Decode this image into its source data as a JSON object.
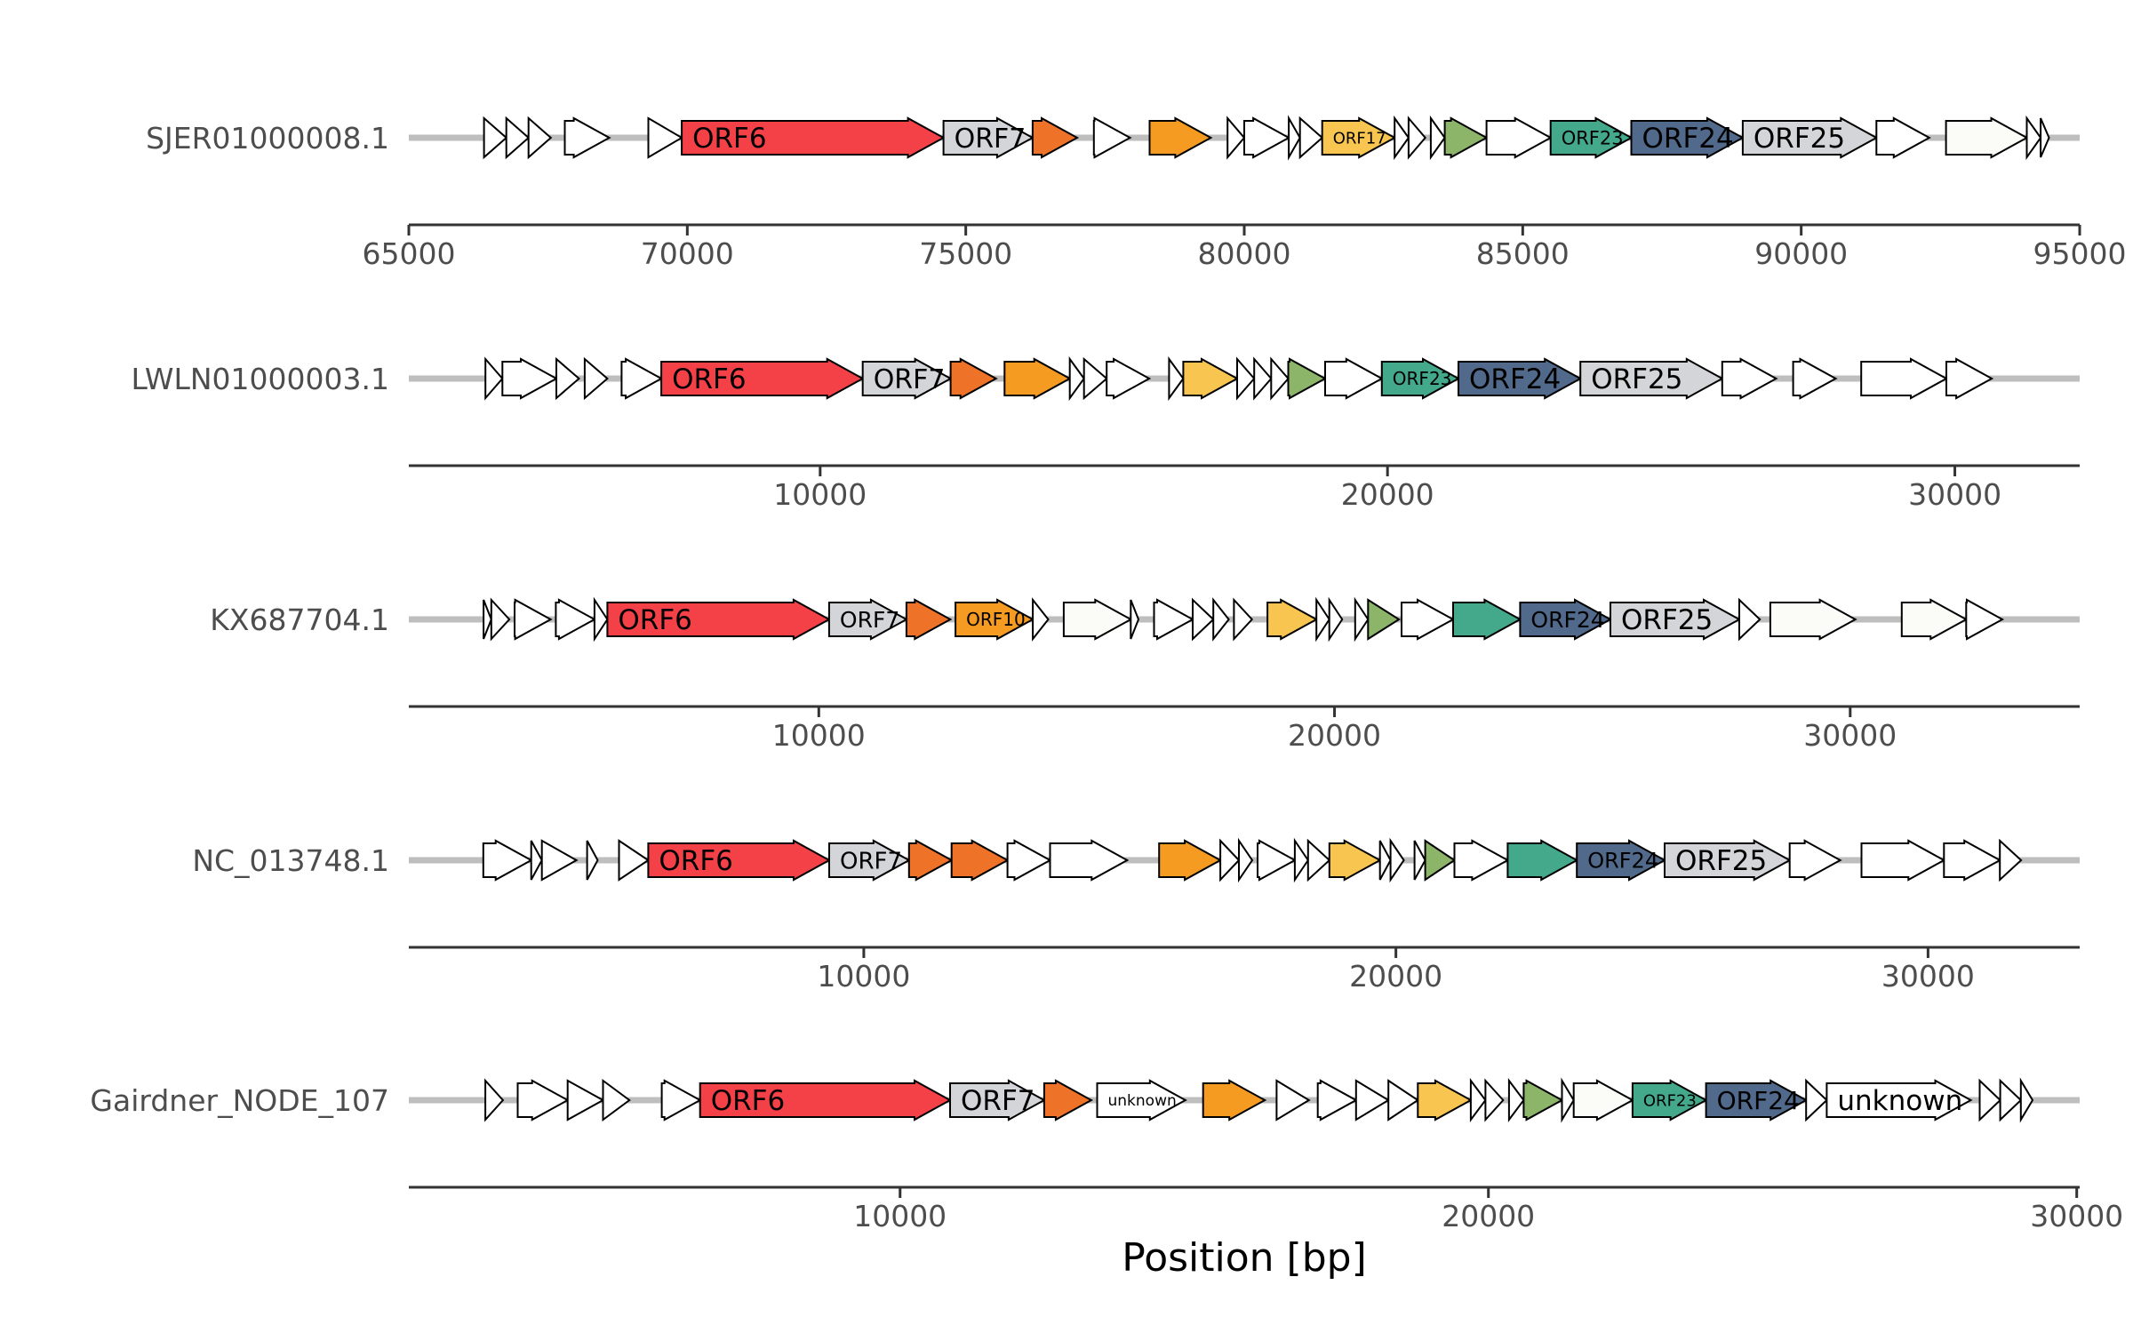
{
  "figure": {
    "x_axis_title": "Position [bp]",
    "backbone_color": "#bebebe",
    "axis_color": "#333333",
    "gene_outline": "#000000"
  },
  "palette": {
    "red": "#f44147",
    "lightgray": "#d3d5d8",
    "orange": "#ef7229",
    "amber": "#f69b22",
    "yellow": "#f8c650",
    "green": "#8cb569",
    "teal": "#44a98b",
    "slate": "#51698a",
    "white": "#ffffff",
    "offwhite": "#fbfcf8"
  },
  "tracks": [
    {
      "name": "SJER01000008.1",
      "xlim": [
        65000,
        95000
      ],
      "ticks": [
        65000,
        70000,
        75000,
        80000,
        85000,
        90000,
        95000
      ],
      "genes": [
        {
          "start": 66350,
          "end": 66750,
          "fill": "white",
          "label": ""
        },
        {
          "start": 66750,
          "end": 67150,
          "fill": "white",
          "label": ""
        },
        {
          "start": 67150,
          "end": 67550,
          "fill": "white",
          "label": ""
        },
        {
          "start": 67800,
          "end": 68600,
          "fill": "white",
          "label": ""
        },
        {
          "start": 69300,
          "end": 69900,
          "fill": "white",
          "label": ""
        },
        {
          "start": 69900,
          "end": 74600,
          "fill": "red",
          "label": "ORF6"
        },
        {
          "start": 74600,
          "end": 76200,
          "fill": "lightgray",
          "label": "ORF7"
        },
        {
          "start": 76200,
          "end": 77000,
          "fill": "orange",
          "label": ""
        },
        {
          "start": 77300,
          "end": 77950,
          "fill": "white",
          "label": ""
        },
        {
          "start": 78300,
          "end": 79400,
          "fill": "amber",
          "label": ""
        },
        {
          "start": 79700,
          "end": 80000,
          "fill": "white",
          "label": ""
        },
        {
          "start": 80000,
          "end": 80800,
          "fill": "white",
          "label": ""
        },
        {
          "start": 80800,
          "end": 81000,
          "fill": "white",
          "label": ""
        },
        {
          "start": 81000,
          "end": 81400,
          "fill": "white",
          "label": ""
        },
        {
          "start": 81400,
          "end": 82700,
          "fill": "yellow",
          "label": "ORF17"
        },
        {
          "start": 82700,
          "end": 82950,
          "fill": "white",
          "label": ""
        },
        {
          "start": 82950,
          "end": 83250,
          "fill": "white",
          "label": ""
        },
        {
          "start": 83350,
          "end": 83600,
          "fill": "white",
          "label": ""
        },
        {
          "start": 83600,
          "end": 84350,
          "fill": "green",
          "label": ""
        },
        {
          "start": 84350,
          "end": 85500,
          "fill": "white",
          "label": ""
        },
        {
          "start": 85500,
          "end": 86950,
          "fill": "teal",
          "label": "ORF23"
        },
        {
          "start": 86950,
          "end": 88950,
          "fill": "slate",
          "label": "ORF24"
        },
        {
          "start": 88950,
          "end": 91350,
          "fill": "lightgray",
          "label": "ORF25"
        },
        {
          "start": 91350,
          "end": 92300,
          "fill": "white",
          "label": ""
        },
        {
          "start": 92600,
          "end": 94050,
          "fill": "offwhite",
          "label": ""
        },
        {
          "start": 94050,
          "end": 94300,
          "fill": "white",
          "label": ""
        },
        {
          "start": 94300,
          "end": 94450,
          "fill": "white",
          "label": ""
        }
      ]
    },
    {
      "name": "LWLN01000003.1",
      "xlim": [
        2750,
        32200
      ],
      "ticks": [
        10000,
        20000,
        30000
      ],
      "genes": [
        {
          "start": 4100,
          "end": 4400,
          "fill": "white",
          "label": ""
        },
        {
          "start": 4400,
          "end": 5350,
          "fill": "white",
          "label": ""
        },
        {
          "start": 5350,
          "end": 5750,
          "fill": "white",
          "label": ""
        },
        {
          "start": 5850,
          "end": 6250,
          "fill": "white",
          "label": ""
        },
        {
          "start": 6500,
          "end": 7200,
          "fill": "white",
          "label": ""
        },
        {
          "start": 7200,
          "end": 10750,
          "fill": "red",
          "label": "ORF6"
        },
        {
          "start": 10750,
          "end": 12300,
          "fill": "lightgray",
          "label": "ORF7"
        },
        {
          "start": 12300,
          "end": 13100,
          "fill": "orange",
          "label": ""
        },
        {
          "start": 13250,
          "end": 14400,
          "fill": "amber",
          "label": ""
        },
        {
          "start": 14400,
          "end": 14650,
          "fill": "white",
          "label": ""
        },
        {
          "start": 14650,
          "end": 15050,
          "fill": "white",
          "label": ""
        },
        {
          "start": 15050,
          "end": 15800,
          "fill": "white",
          "label": ""
        },
        {
          "start": 16150,
          "end": 16400,
          "fill": "white",
          "label": ""
        },
        {
          "start": 16400,
          "end": 17350,
          "fill": "yellow",
          "label": ""
        },
        {
          "start": 17350,
          "end": 17650,
          "fill": "white",
          "label": ""
        },
        {
          "start": 17650,
          "end": 17950,
          "fill": "white",
          "label": ""
        },
        {
          "start": 17950,
          "end": 18250,
          "fill": "white",
          "label": ""
        },
        {
          "start": 18250,
          "end": 18900,
          "fill": "green",
          "label": ""
        },
        {
          "start": 18900,
          "end": 19900,
          "fill": "white",
          "label": ""
        },
        {
          "start": 19900,
          "end": 21250,
          "fill": "teal",
          "label": "ORF23"
        },
        {
          "start": 21250,
          "end": 23400,
          "fill": "slate",
          "label": "ORF24"
        },
        {
          "start": 23400,
          "end": 25900,
          "fill": "lightgray",
          "label": "ORF25"
        },
        {
          "start": 25900,
          "end": 26850,
          "fill": "white",
          "label": ""
        },
        {
          "start": 27150,
          "end": 27900,
          "fill": "white",
          "label": ""
        },
        {
          "start": 28350,
          "end": 29850,
          "fill": "white",
          "label": ""
        },
        {
          "start": 29850,
          "end": 30650,
          "fill": "white",
          "label": ""
        }
      ]
    },
    {
      "name": "KX687704.1",
      "xlim": [
        2050,
        34450
      ],
      "ticks": [
        10000,
        20000,
        30000
      ],
      "genes": [
        {
          "start": 3500,
          "end": 3650,
          "fill": "white",
          "label": ""
        },
        {
          "start": 3650,
          "end": 4000,
          "fill": "white",
          "label": ""
        },
        {
          "start": 4100,
          "end": 4800,
          "fill": "white",
          "label": ""
        },
        {
          "start": 4900,
          "end": 5650,
          "fill": "white",
          "label": ""
        },
        {
          "start": 5650,
          "end": 5900,
          "fill": "white",
          "label": ""
        },
        {
          "start": 5900,
          "end": 10200,
          "fill": "red",
          "label": "ORF6"
        },
        {
          "start": 10200,
          "end": 11700,
          "fill": "lightgray",
          "label": "ORF7"
        },
        {
          "start": 11700,
          "end": 12550,
          "fill": "orange",
          "label": ""
        },
        {
          "start": 12650,
          "end": 14150,
          "fill": "amber",
          "label": "ORF10"
        },
        {
          "start": 14150,
          "end": 14450,
          "fill": "white",
          "label": ""
        },
        {
          "start": 14750,
          "end": 16050,
          "fill": "offwhite",
          "label": ""
        },
        {
          "start": 16050,
          "end": 16200,
          "fill": "white",
          "label": ""
        },
        {
          "start": 16500,
          "end": 17250,
          "fill": "white",
          "label": ""
        },
        {
          "start": 17250,
          "end": 17650,
          "fill": "white",
          "label": ""
        },
        {
          "start": 17650,
          "end": 17950,
          "fill": "white",
          "label": ""
        },
        {
          "start": 18050,
          "end": 18400,
          "fill": "white",
          "label": ""
        },
        {
          "start": 18700,
          "end": 19650,
          "fill": "yellow",
          "label": ""
        },
        {
          "start": 19650,
          "end": 19900,
          "fill": "white",
          "label": ""
        },
        {
          "start": 19900,
          "end": 20150,
          "fill": "white",
          "label": ""
        },
        {
          "start": 20400,
          "end": 20650,
          "fill": "white",
          "label": ""
        },
        {
          "start": 20650,
          "end": 21250,
          "fill": "green",
          "label": ""
        },
        {
          "start": 21300,
          "end": 22300,
          "fill": "white",
          "label": ""
        },
        {
          "start": 22300,
          "end": 23600,
          "fill": "teal",
          "label": ""
        },
        {
          "start": 23600,
          "end": 25350,
          "fill": "slate",
          "label": "ORF24"
        },
        {
          "start": 25350,
          "end": 27850,
          "fill": "lightgray",
          "label": "ORF25"
        },
        {
          "start": 27850,
          "end": 28250,
          "fill": "white",
          "label": ""
        },
        {
          "start": 28450,
          "end": 30100,
          "fill": "offwhite",
          "label": ""
        },
        {
          "start": 31000,
          "end": 32250,
          "fill": "offwhite",
          "label": ""
        },
        {
          "start": 32250,
          "end": 32950,
          "fill": "white",
          "label": ""
        }
      ]
    },
    {
      "name": "NC_013748.1",
      "xlim": [
        1450,
        32850
      ],
      "ticks": [
        10000,
        20000,
        30000
      ],
      "genes": [
        {
          "start": 2850,
          "end": 3750,
          "fill": "white",
          "label": ""
        },
        {
          "start": 3750,
          "end": 3950,
          "fill": "white",
          "label": ""
        },
        {
          "start": 3950,
          "end": 4600,
          "fill": "white",
          "label": ""
        },
        {
          "start": 4800,
          "end": 5000,
          "fill": "white",
          "label": ""
        },
        {
          "start": 5400,
          "end": 5950,
          "fill": "white",
          "label": ""
        },
        {
          "start": 5950,
          "end": 9350,
          "fill": "red",
          "label": "ORF6"
        },
        {
          "start": 9350,
          "end": 10850,
          "fill": "lightgray",
          "label": "ORF7"
        },
        {
          "start": 10850,
          "end": 11650,
          "fill": "orange",
          "label": ""
        },
        {
          "start": 11650,
          "end": 12700,
          "fill": "orange",
          "label": ""
        },
        {
          "start": 12700,
          "end": 13500,
          "fill": "white",
          "label": ""
        },
        {
          "start": 13500,
          "end": 14950,
          "fill": "white",
          "label": ""
        },
        {
          "start": 15550,
          "end": 16700,
          "fill": "amber",
          "label": ""
        },
        {
          "start": 16700,
          "end": 17050,
          "fill": "white",
          "label": ""
        },
        {
          "start": 17050,
          "end": 17300,
          "fill": "white",
          "label": ""
        },
        {
          "start": 17400,
          "end": 18100,
          "fill": "white",
          "label": ""
        },
        {
          "start": 18100,
          "end": 18350,
          "fill": "white",
          "label": ""
        },
        {
          "start": 18350,
          "end": 18750,
          "fill": "white",
          "label": ""
        },
        {
          "start": 18750,
          "end": 19700,
          "fill": "yellow",
          "label": ""
        },
        {
          "start": 19700,
          "end": 19900,
          "fill": "white",
          "label": ""
        },
        {
          "start": 19900,
          "end": 20150,
          "fill": "white",
          "label": ""
        },
        {
          "start": 20350,
          "end": 20550,
          "fill": "white",
          "label": ""
        },
        {
          "start": 20550,
          "end": 21100,
          "fill": "green",
          "label": ""
        },
        {
          "start": 21100,
          "end": 22100,
          "fill": "white",
          "label": ""
        },
        {
          "start": 22100,
          "end": 23400,
          "fill": "teal",
          "label": ""
        },
        {
          "start": 23400,
          "end": 25050,
          "fill": "slate",
          "label": "ORF24"
        },
        {
          "start": 25050,
          "end": 27400,
          "fill": "lightgray",
          "label": "ORF25"
        },
        {
          "start": 27400,
          "end": 28350,
          "fill": "white",
          "label": ""
        },
        {
          "start": 28750,
          "end": 30300,
          "fill": "white",
          "label": ""
        },
        {
          "start": 30300,
          "end": 31350,
          "fill": "white",
          "label": ""
        },
        {
          "start": 31350,
          "end": 31750,
          "fill": "white",
          "label": ""
        }
      ]
    },
    {
      "name": "Gairdner_NODE_107",
      "xlim": [
        1650,
        30050
      ],
      "ticks": [
        10000,
        20000,
        30000
      ],
      "genes": [
        {
          "start": 2950,
          "end": 3250,
          "fill": "white",
          "label": ""
        },
        {
          "start": 3500,
          "end": 4350,
          "fill": "white",
          "label": ""
        },
        {
          "start": 4350,
          "end": 4950,
          "fill": "white",
          "label": ""
        },
        {
          "start": 4950,
          "end": 5400,
          "fill": "white",
          "label": ""
        },
        {
          "start": 5950,
          "end": 6600,
          "fill": "white",
          "label": ""
        },
        {
          "start": 6600,
          "end": 10850,
          "fill": "red",
          "label": "ORF6"
        },
        {
          "start": 10850,
          "end": 12450,
          "fill": "lightgray",
          "label": "ORF7"
        },
        {
          "start": 12450,
          "end": 13250,
          "fill": "orange",
          "label": ""
        },
        {
          "start": 13350,
          "end": 14850,
          "fill": "white",
          "label": "unknown"
        },
        {
          "start": 15150,
          "end": 16200,
          "fill": "amber",
          "label": ""
        },
        {
          "start": 16400,
          "end": 16950,
          "fill": "white",
          "label": ""
        },
        {
          "start": 17100,
          "end": 17750,
          "fill": "white",
          "label": ""
        },
        {
          "start": 17750,
          "end": 18300,
          "fill": "white",
          "label": ""
        },
        {
          "start": 18300,
          "end": 18800,
          "fill": "white",
          "label": ""
        },
        {
          "start": 18800,
          "end": 19700,
          "fill": "yellow",
          "label": ""
        },
        {
          "start": 19700,
          "end": 19950,
          "fill": "white",
          "label": ""
        },
        {
          "start": 19950,
          "end": 20250,
          "fill": "white",
          "label": ""
        },
        {
          "start": 20350,
          "end": 20600,
          "fill": "white",
          "label": ""
        },
        {
          "start": 20600,
          "end": 21250,
          "fill": "green",
          "label": ""
        },
        {
          "start": 21250,
          "end": 21450,
          "fill": "white",
          "label": ""
        },
        {
          "start": 21450,
          "end": 22450,
          "fill": "offwhite",
          "label": ""
        },
        {
          "start": 22450,
          "end": 23700,
          "fill": "teal",
          "label": "ORF23"
        },
        {
          "start": 23700,
          "end": 25400,
          "fill": "slate",
          "label": "ORF24"
        },
        {
          "start": 25400,
          "end": 25750,
          "fill": "white",
          "label": ""
        },
        {
          "start": 25750,
          "end": 28200,
          "fill": "white",
          "label": "unknown"
        },
        {
          "start": 28350,
          "end": 28700,
          "fill": "white",
          "label": ""
        },
        {
          "start": 28700,
          "end": 29050,
          "fill": "white",
          "label": ""
        },
        {
          "start": 29050,
          "end": 29250,
          "fill": "white",
          "label": ""
        }
      ]
    }
  ]
}
